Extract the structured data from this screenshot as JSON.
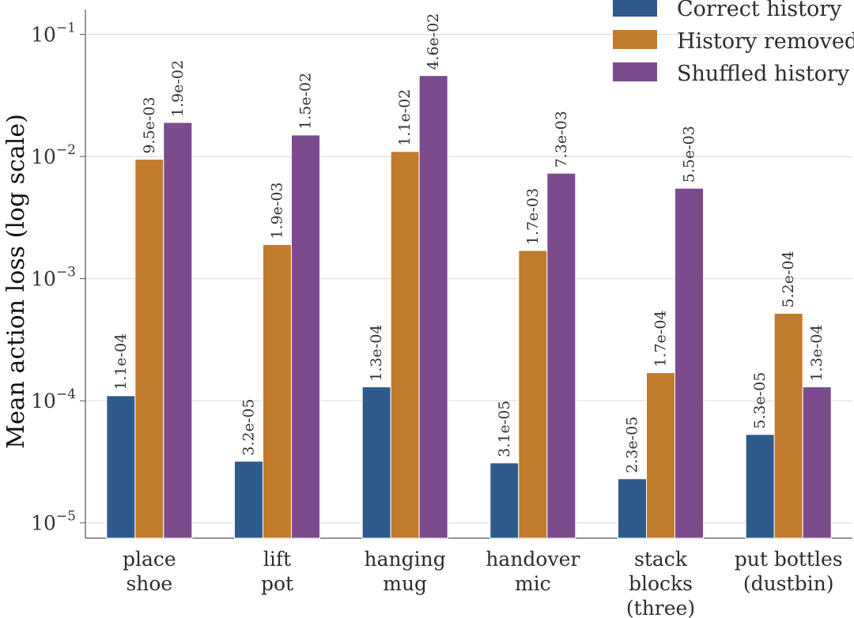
{
  "chart_data": {
    "type": "bar",
    "ylabel": "Mean action loss (log scale)",
    "xlabel": "",
    "yscale": "log",
    "ylim": [
      7.5e-06,
      0.16
    ],
    "grid": true,
    "legend_position": "top-right",
    "yticks": [
      {
        "base": "10",
        "exp": "−5",
        "value": 1e-05
      },
      {
        "base": "10",
        "exp": "−4",
        "value": 0.0001
      },
      {
        "base": "10",
        "exp": "−3",
        "value": 0.001
      },
      {
        "base": "10",
        "exp": "−2",
        "value": 0.01
      },
      {
        "base": "10",
        "exp": "−1",
        "value": 0.1
      }
    ],
    "categories": [
      [
        "place",
        "shoe"
      ],
      [
        "lift",
        "pot"
      ],
      [
        "hanging",
        "mug"
      ],
      [
        "handover",
        "mic"
      ],
      [
        "stack",
        "blocks",
        "(three)"
      ],
      [
        "put bottles",
        "(dustbin)"
      ]
    ],
    "series": [
      {
        "name": "Correct history",
        "color": "#2f5b8a",
        "values": [
          0.00011,
          3.2e-05,
          0.00013,
          3.1e-05,
          2.3e-05,
          5.3e-05
        ],
        "labels": [
          "1.1e-04",
          "3.2e-05",
          "1.3e-04",
          "3.1e-05",
          "2.3e-05",
          "5.3e-05"
        ]
      },
      {
        "name": "History removed",
        "color": "#c17c2e",
        "values": [
          0.0095,
          0.0019,
          0.011,
          0.0017,
          0.00017,
          0.00052
        ],
        "labels": [
          "9.5e-03",
          "1.9e-03",
          "1.1e-02",
          "1.7e-03",
          "1.7e-04",
          "5.2e-04"
        ]
      },
      {
        "name": "Shuffled history",
        "color": "#7b4b8e",
        "values": [
          0.019,
          0.015,
          0.046,
          0.0073,
          0.0055,
          0.00013
        ],
        "labels": [
          "1.9e-02",
          "1.5e-02",
          "4.6e-02",
          "7.3e-03",
          "5.5e-03",
          "1.3e-04"
        ]
      }
    ]
  }
}
